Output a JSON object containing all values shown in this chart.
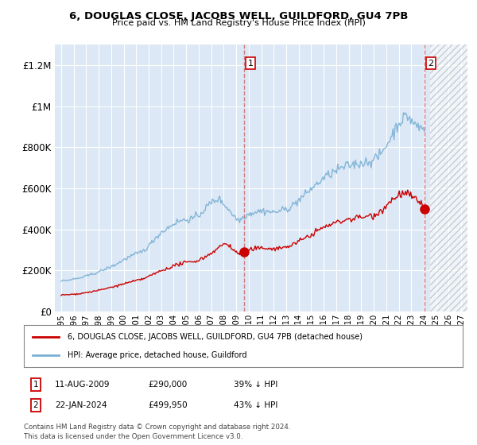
{
  "title": "6, DOUGLAS CLOSE, JACOBS WELL, GUILDFORD, GU4 7PB",
  "subtitle": "Price paid vs. HM Land Registry's House Price Index (HPI)",
  "legend_red": "6, DOUGLAS CLOSE, JACOBS WELL, GUILDFORD, GU4 7PB (detached house)",
  "legend_blue": "HPI: Average price, detached house, Guildford",
  "transaction1_date": "11-AUG-2009",
  "transaction1_price": "£290,000",
  "transaction1_info": "39% ↓ HPI",
  "transaction2_date": "22-JAN-2024",
  "transaction2_price": "£499,950",
  "transaction2_info": "43% ↓ HPI",
  "footnote": "Contains HM Land Registry data © Crown copyright and database right 2024.\nThis data is licensed under the Open Government Licence v3.0.",
  "ylim": [
    0,
    1300000
  ],
  "yticks": [
    0,
    200000,
    400000,
    600000,
    800000,
    1000000,
    1200000
  ],
  "background_color": "#ffffff",
  "plot_background": "#dce8f5",
  "grid_color": "#ffffff",
  "red_color": "#cc0000",
  "blue_color": "#7ab0d4",
  "marker1_x": 2009.62,
  "marker1_y": 290000,
  "marker2_x": 2024.05,
  "marker2_y": 499950,
  "vline1_x": 2009.62,
  "vline2_x": 2024.05,
  "hatch_start_x": 2024.5,
  "xmin": 1994.5,
  "xmax": 2027.5
}
